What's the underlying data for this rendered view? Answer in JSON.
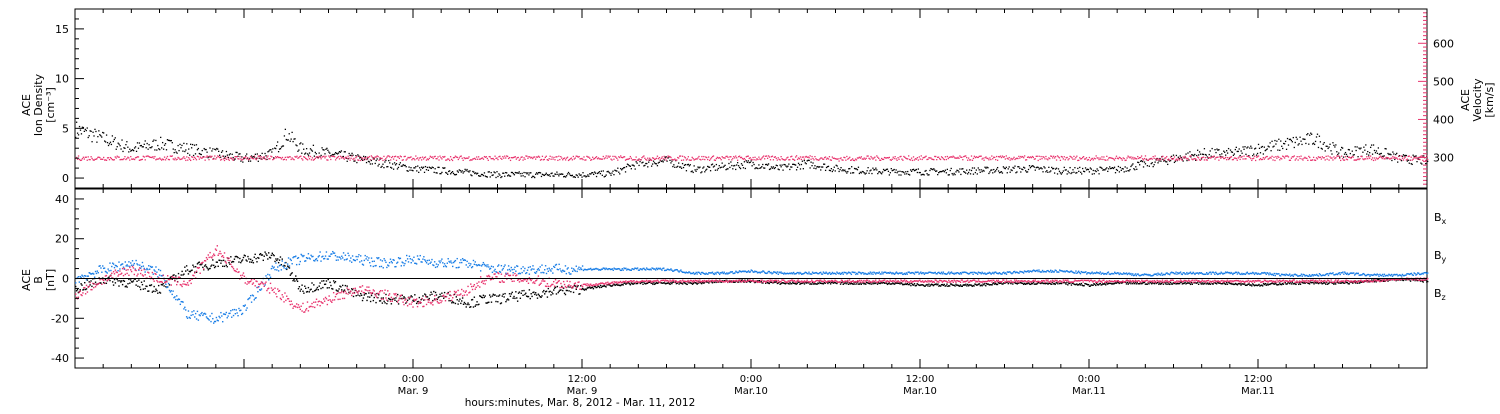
{
  "chart_data": [
    {
      "type": "scatter",
      "panel": "plasma",
      "left_axis": {
        "label_lines": [
          "ACE",
          "Ion Density",
          "[cm⁻³]"
        ],
        "ylim": [
          -1,
          17
        ],
        "ticks": [
          0,
          5,
          10,
          15
        ],
        "tick_labels": [
          "0",
          "5",
          "10",
          "15"
        ]
      },
      "right_axis": {
        "label_lines": [
          "ACE",
          "Velocity",
          "[km/s]"
        ],
        "ylim": [
          220,
          690
        ],
        "ticks": [
          300,
          400,
          500,
          600
        ],
        "tick_labels": [
          "300",
          "400",
          "500",
          "600"
        ],
        "color": "#e8336d"
      },
      "series": [
        {
          "color": "#000000",
          "axis": "left",
          "hours": [
            0,
            2,
            4,
            6,
            8,
            10,
            12,
            14,
            15,
            16,
            18,
            20,
            22,
            24,
            26,
            28,
            29,
            30,
            32,
            34,
            36,
            38,
            40,
            42,
            44,
            46,
            48,
            50,
            52,
            54,
            56,
            58,
            60,
            62,
            64,
            66,
            68,
            70,
            72,
            74,
            76,
            78,
            80,
            82,
            84,
            86,
            88,
            90,
            92,
            94,
            96
          ],
          "values": [
            5,
            4,
            3,
            3.5,
            3,
            2.5,
            2,
            2.5,
            4.5,
            3,
            2.5,
            2,
            1.5,
            1,
            0.8,
            0.6,
            0.5,
            0.4,
            0.4,
            0.4,
            0.4,
            0.5,
            1.5,
            1.8,
            0.9,
            1.2,
            1.5,
            1,
            1.5,
            1,
            0.8,
            0.7,
            0.7,
            0.7,
            0.8,
            0.9,
            1,
            0.8,
            0.8,
            0.9,
            1.5,
            2,
            2.5,
            2.5,
            3,
            3.5,
            4,
            2.5,
            3,
            2,
            1.8
          ]
        },
        {
          "color": "#e8336d",
          "axis": "right",
          "hours": [
            0,
            4,
            8,
            12,
            16,
            20,
            24,
            28,
            30,
            32,
            34,
            36,
            40,
            44,
            48,
            50,
            51,
            52,
            53,
            54,
            56,
            57,
            58,
            60,
            62,
            64,
            66,
            68,
            70,
            72,
            74,
            76,
            78,
            80,
            82,
            84,
            86,
            88,
            90,
            92,
            94,
            96
          ],
          "values": [
            300,
            300,
            300,
            300,
            300,
            300,
            300,
            300,
            300,
            300,
            300,
            300,
            300,
            300,
            300,
            300,
            300,
            302,
            300,
            298,
            300,
            300,
            300,
            300,
            300,
            300,
            300,
            300,
            300,
            300,
            300,
            300,
            300,
            300,
            300,
            300,
            300,
            300,
            300,
            300,
            300,
            300
          ]
        }
      ]
    },
    {
      "type": "scatter",
      "panel": "magnetic",
      "axis": {
        "label_lines": [
          "ACE",
          "B",
          "[nT]"
        ],
        "ylim": [
          -45,
          45
        ],
        "ticks": [
          -40,
          -20,
          0,
          20,
          40
        ],
        "tick_labels": [
          "-40",
          "-20",
          "0",
          "20",
          "40"
        ]
      },
      "legend": [
        {
          "text": "B",
          "sub": "x",
          "color": "#000000"
        },
        {
          "text": "B",
          "sub": "y",
          "color": "#1a7ee6"
        },
        {
          "text": "B",
          "sub": "z",
          "color": "#e8336d"
        }
      ],
      "series": [
        {
          "name": "Bx",
          "color": "#000000",
          "hours": [
            0,
            2,
            4,
            6,
            8,
            10,
            12,
            14,
            15,
            16,
            18,
            20,
            22,
            24,
            26,
            28,
            29,
            30,
            32,
            34,
            36,
            38,
            40,
            42,
            44,
            46,
            48,
            50,
            52,
            54,
            56,
            58,
            60,
            62,
            64,
            66,
            68,
            70,
            72,
            74,
            76,
            78,
            80,
            82,
            84,
            86,
            88,
            90,
            92,
            94,
            96
          ],
          "values": [
            -5,
            0,
            -2,
            -5,
            5,
            8,
            10,
            12,
            6,
            -5,
            -2,
            -8,
            -10,
            -10,
            -8,
            -12,
            -10,
            -10,
            -8,
            -6,
            -5,
            -3,
            -2,
            -2,
            -2,
            -1,
            -1,
            -2,
            -2,
            -2,
            -2,
            -2,
            -3,
            -3,
            -3,
            -2,
            -2,
            -2,
            -3,
            -2,
            -2,
            -2,
            -2,
            -2,
            -3,
            -2,
            -2,
            -2,
            -1,
            0,
            -1
          ]
        },
        {
          "name": "By",
          "color": "#1a7ee6",
          "hours": [
            0,
            2,
            4,
            6,
            8,
            10,
            12,
            14,
            15,
            16,
            18,
            20,
            22,
            24,
            26,
            28,
            29,
            30,
            32,
            34,
            36,
            38,
            40,
            42,
            44,
            46,
            48,
            50,
            52,
            54,
            56,
            58,
            60,
            62,
            64,
            66,
            68,
            70,
            72,
            74,
            76,
            78,
            80,
            82,
            84,
            86,
            88,
            90,
            92,
            94,
            96
          ],
          "values": [
            0,
            5,
            8,
            3,
            -18,
            -20,
            -15,
            5,
            8,
            10,
            12,
            10,
            8,
            10,
            8,
            8,
            6,
            5,
            5,
            5,
            5,
            5,
            5,
            5,
            3,
            3,
            4,
            3,
            3,
            3,
            3,
            3,
            3,
            3,
            3,
            3,
            4,
            4,
            3,
            3,
            2,
            3,
            3,
            3,
            3,
            2,
            2,
            3,
            2,
            2,
            3
          ]
        },
        {
          "name": "Bz",
          "color": "#e8336d",
          "hours": [
            0,
            2,
            4,
            6,
            8,
            10,
            12,
            14,
            15,
            16,
            18,
            20,
            22,
            24,
            26,
            28,
            29,
            30,
            32,
            34,
            36,
            38,
            40,
            42,
            44,
            46,
            48,
            50,
            52,
            54,
            56,
            58,
            60,
            62,
            64,
            66,
            68,
            70,
            72,
            74,
            76,
            78,
            80,
            82,
            84,
            86,
            88,
            90,
            92,
            94,
            96
          ],
          "values": [
            -8,
            0,
            5,
            0,
            -2,
            15,
            0,
            -5,
            -10,
            -15,
            -10,
            -5,
            -8,
            -12,
            -10,
            -5,
            0,
            1,
            0,
            -2,
            -3,
            -2,
            -1,
            -1,
            -1,
            -1,
            -1,
            -1,
            -1,
            -1,
            -1,
            -1,
            -1,
            -1,
            -1,
            -1,
            -1,
            -1,
            -1,
            -1,
            -1,
            -1,
            -1,
            -1,
            -1,
            -1,
            -1,
            -1,
            -1,
            0,
            0
          ]
        }
      ]
    }
  ],
  "x_axis": {
    "range_hours": [
      0,
      96
    ],
    "ticks": [
      {
        "hour": 24,
        "time": "0:00",
        "date": "Mar. 9"
      },
      {
        "hour": 36,
        "time": "12:00",
        "date": "Mar. 9"
      },
      {
        "hour": 48,
        "time": "0:00",
        "date": "Mar.10"
      },
      {
        "hour": 60,
        "time": "12:00",
        "date": "Mar.10"
      },
      {
        "hour": 72,
        "time": "0:00",
        "date": "Mar.11"
      },
      {
        "hour": 84,
        "time": "12:00",
        "date": "Mar.11"
      }
    ],
    "label": "hours:minutes, Mar.  8, 2012 - Mar. 11, 2012"
  }
}
